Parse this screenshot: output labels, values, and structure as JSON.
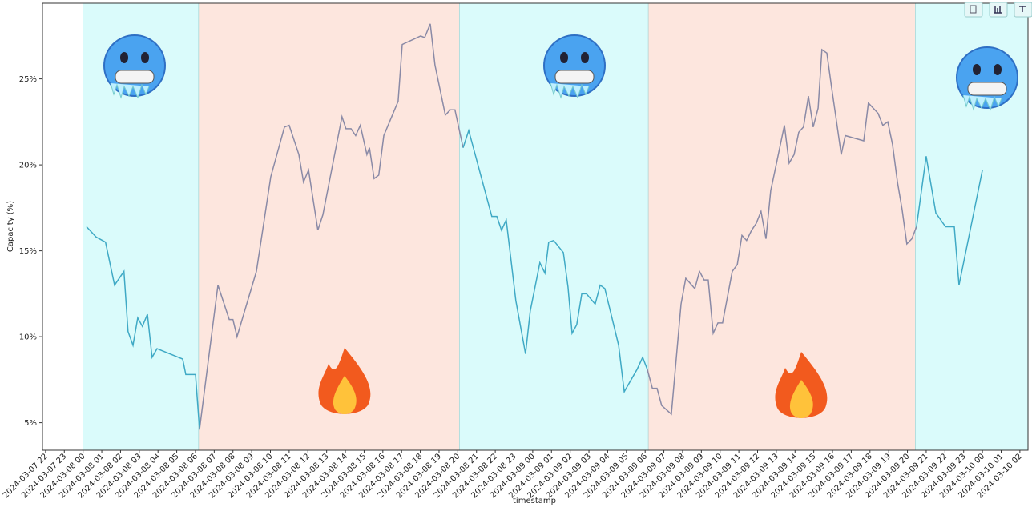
{
  "chart_data": {
    "type": "line",
    "x_label": "timestamp",
    "y_label": "Capacity (%)",
    "x": [
      "2024-03-08 00:11",
      "2024-03-08 00:42",
      "2024-03-08 01:12",
      "2024-03-08 01:41",
      "2024-03-08 02:11",
      "2024-03-08 02:24",
      "2024-03-08 02:40",
      "2024-03-08 02:55",
      "2024-03-08 03:10",
      "2024-03-08 03:26",
      "2024-03-08 03:41",
      "2024-03-08 03:57",
      "2024-03-08 05:19",
      "2024-03-08 05:29",
      "2024-03-08 06:00",
      "2024-03-08 06:13",
      "2024-03-08 07:12",
      "2024-03-08 07:48",
      "2024-03-08 08:00",
      "2024-03-08 08:13",
      "2024-03-08 09:15",
      "2024-03-08 10:01",
      "2024-03-08 10:45",
      "2024-03-08 11:00",
      "2024-03-08 11:31",
      "2024-03-08 11:46",
      "2024-03-08 12:02",
      "2024-03-08 12:32",
      "2024-03-08 12:48",
      "2024-03-08 13:49",
      "2024-03-08 14:02",
      "2024-03-08 14:18",
      "2024-03-08 14:33",
      "2024-03-08 14:48",
      "2024-03-08 15:09",
      "2024-03-08 15:17",
      "2024-03-08 15:32",
      "2024-03-08 15:47",
      "2024-03-08 16:03",
      "2024-03-08 16:49",
      "2024-03-08 17:02",
      "2024-03-08 18:01",
      "2024-03-08 18:14",
      "2024-03-08 18:32",
      "2024-03-08 18:47",
      "2024-03-08 19:20",
      "2024-03-08 19:36",
      "2024-03-08 19:51",
      "2024-03-08 20:17",
      "2024-03-08 20:35",
      "2024-03-08 21:49",
      "2024-03-08 22:05",
      "2024-03-08 22:20",
      "2024-03-08 22:35",
      "2024-03-08 23:06",
      "2024-03-08 23:37",
      "2024-03-08 23:52",
      "2024-03-09 00:23",
      "2024-03-09 00:39",
      "2024-03-09 00:51",
      "2024-03-09 01:07",
      "2024-03-09 01:38",
      "2024-03-09 01:53",
      "2024-03-09 02:06",
      "2024-03-09 02:21",
      "2024-03-09 02:37",
      "2024-03-09 02:52",
      "2024-03-09 03:20",
      "2024-03-09 03:36",
      "2024-03-09 03:51",
      "2024-03-09 04:35",
      "2024-03-09 04:53",
      "2024-03-09 05:34",
      "2024-03-09 05:52",
      "2024-03-09 06:07",
      "2024-03-09 06:23",
      "2024-03-09 06:38",
      "2024-03-09 06:53",
      "2024-03-09 07:24",
      "2024-03-09 07:55",
      "2024-03-09 08:10",
      "2024-03-09 08:39",
      "2024-03-09 08:54",
      "2024-03-09 09:09",
      "2024-03-09 09:22",
      "2024-03-09 09:38",
      "2024-03-09 09:53",
      "2024-03-09 10:08",
      "2024-03-09 10:39",
      "2024-03-09 10:55",
      "2024-03-09 11:10",
      "2024-03-09 11:25",
      "2024-03-09 11:41",
      "2024-03-09 11:56",
      "2024-03-09 12:11",
      "2024-03-09 12:27",
      "2024-03-09 12:42",
      "2024-03-09 12:55",
      "2024-03-09 13:26",
      "2024-03-09 13:41",
      "2024-03-09 13:57",
      "2024-03-09 14:12",
      "2024-03-09 14:27",
      "2024-03-09 14:43",
      "2024-03-09 14:58",
      "2024-03-09 15:14",
      "2024-03-09 15:26",
      "2024-03-09 15:42",
      "2024-03-09 15:57",
      "2024-03-09 16:13",
      "2024-03-09 16:28",
      "2024-03-09 16:41",
      "2024-03-09 17:40",
      "2024-03-09 17:55",
      "2024-03-09 18:26",
      "2024-03-09 18:41",
      "2024-03-09 18:57",
      "2024-03-09 19:12",
      "2024-03-09 19:28",
      "2024-03-09 19:43",
      "2024-03-09 19:58",
      "2024-03-09 20:14",
      "2024-03-09 20:29",
      "2024-03-09 21:00",
      "2024-03-09 21:31",
      "2024-03-09 22:02",
      "2024-03-09 22:30",
      "2024-03-09 22:45",
      "2024-03-10 00:00"
    ],
    "values": [
      16.4,
      15.8,
      15.5,
      13.0,
      13.8,
      10.3,
      9.5,
      11.1,
      10.6,
      11.3,
      8.8,
      9.3,
      8.7,
      7.8,
      7.8,
      4.6,
      13.0,
      11.0,
      11.0,
      10.0,
      13.8,
      19.3,
      22.2,
      22.3,
      20.6,
      19.0,
      19.7,
      16.2,
      17.1,
      22.8,
      22.1,
      22.1,
      21.7,
      22.3,
      20.6,
      21.0,
      19.2,
      19.4,
      21.7,
      23.7,
      27.0,
      27.5,
      27.4,
      28.2,
      25.8,
      22.9,
      23.2,
      23.2,
      21.0,
      22.0,
      17.0,
      17.0,
      16.2,
      16.8,
      12.1,
      9.0,
      11.5,
      14.3,
      13.7,
      15.5,
      15.6,
      14.9,
      12.9,
      10.2,
      10.7,
      12.5,
      12.5,
      11.9,
      13.0,
      12.8,
      9.5,
      6.8,
      8.1,
      8.8,
      8.1,
      7.0,
      7.0,
      6.0,
      5.5,
      11.9,
      13.4,
      12.8,
      13.8,
      13.3,
      13.3,
      10.2,
      10.8,
      10.8,
      13.8,
      14.2,
      15.9,
      15.6,
      16.2,
      16.6,
      17.3,
      15.7,
      18.5,
      19.6,
      22.3,
      20.1,
      20.6,
      21.9,
      22.2,
      24.0,
      22.2,
      23.3,
      26.7,
      26.5,
      24.5,
      22.5,
      20.6,
      21.7,
      21.4,
      23.6,
      23.0,
      22.3,
      22.5,
      21.2,
      19.0,
      17.4,
      15.4,
      15.7,
      16.4,
      20.5,
      17.2,
      16.4,
      16.4,
      13.0,
      19.7
    ],
    "regions": [
      {
        "start": "2024-03-08 00:00",
        "end": "2024-03-08 06:10",
        "color": "#dafbfb",
        "line_color": "#3fa9c5"
      },
      {
        "start": "2024-03-08 06:10",
        "end": "2024-03-08 20:05",
        "color": "#fde6de",
        "line_color": "#8a8aa6"
      },
      {
        "start": "2024-03-08 20:05",
        "end": "2024-03-09 06:10",
        "color": "#dafbfb",
        "line_color": "#3fa9c5"
      },
      {
        "start": "2024-03-09 06:10",
        "end": "2024-03-09 20:25",
        "color": "#fde6de",
        "line_color": "#8a8aa6"
      },
      {
        "start": "2024-03-09 20:25",
        "end": "2024-03-10 02:26",
        "color": "#dafbfb",
        "line_color": "#3fa9c5"
      }
    ],
    "xlim": [
      "2024-03-07 21:50",
      "2024-03-10 02:26"
    ],
    "xticks": [
      "2024-03-07 22",
      "2024-03-07 23",
      "2024-03-08 00",
      "2024-03-08 01",
      "2024-03-08 02",
      "2024-03-08 03",
      "2024-03-08 04",
      "2024-03-08 05",
      "2024-03-08 06",
      "2024-03-08 07",
      "2024-03-08 08",
      "2024-03-08 09",
      "2024-03-08 10",
      "2024-03-08 11",
      "2024-03-08 12",
      "2024-03-08 13",
      "2024-03-08 14",
      "2024-03-08 15",
      "2024-03-08 16",
      "2024-03-08 17",
      "2024-03-08 18",
      "2024-03-08 19",
      "2024-03-08 20",
      "2024-03-08 21",
      "2024-03-08 22",
      "2024-03-08 23",
      "2024-03-09 00",
      "2024-03-09 01",
      "2024-03-09 02",
      "2024-03-09 03",
      "2024-03-09 04",
      "2024-03-09 05",
      "2024-03-09 06",
      "2024-03-09 07",
      "2024-03-09 08",
      "2024-03-09 09",
      "2024-03-09 10",
      "2024-03-09 11",
      "2024-03-09 12",
      "2024-03-09 13",
      "2024-03-09 14",
      "2024-03-09 15",
      "2024-03-09 16",
      "2024-03-09 17",
      "2024-03-09 18",
      "2024-03-09 19",
      "2024-03-09 20",
      "2024-03-09 21",
      "2024-03-09 22",
      "2024-03-09 23",
      "2024-03-10 00",
      "2024-03-10 01",
      "2024-03-10 02"
    ],
    "ylim": [
      3.4,
      29.4
    ],
    "yticks": [
      {
        "value": 5,
        "label": "5%"
      },
      {
        "value": 10,
        "label": "10%"
      },
      {
        "value": 15,
        "label": "15%"
      },
      {
        "value": 20,
        "label": "20%"
      },
      {
        "value": 25,
        "label": "25%"
      }
    ]
  }
}
